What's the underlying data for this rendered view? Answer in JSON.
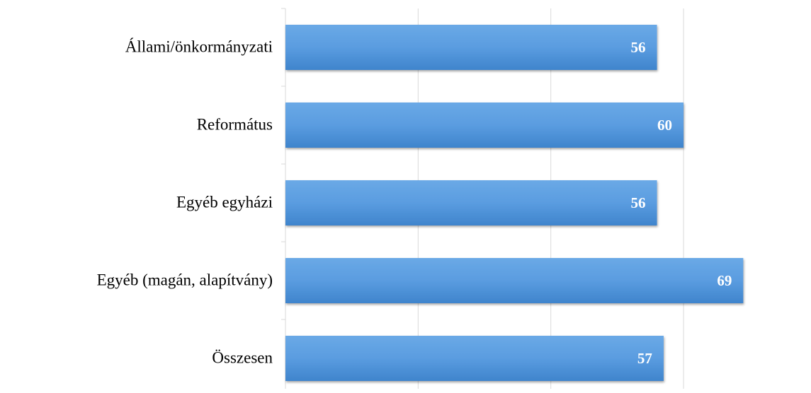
{
  "chart_data": {
    "type": "bar",
    "orientation": "horizontal",
    "categories": [
      "Állami/önkormányzati",
      "Református",
      "Egyéb egyházi",
      "Egyéb (magán, alapítvány)",
      "Összesen"
    ],
    "values": [
      56,
      60,
      56,
      69,
      57
    ],
    "color": "#4a8fd6",
    "xlim": [
      0,
      79
    ],
    "xticks": [
      0,
      20,
      40,
      60
    ],
    "grid": true
  }
}
